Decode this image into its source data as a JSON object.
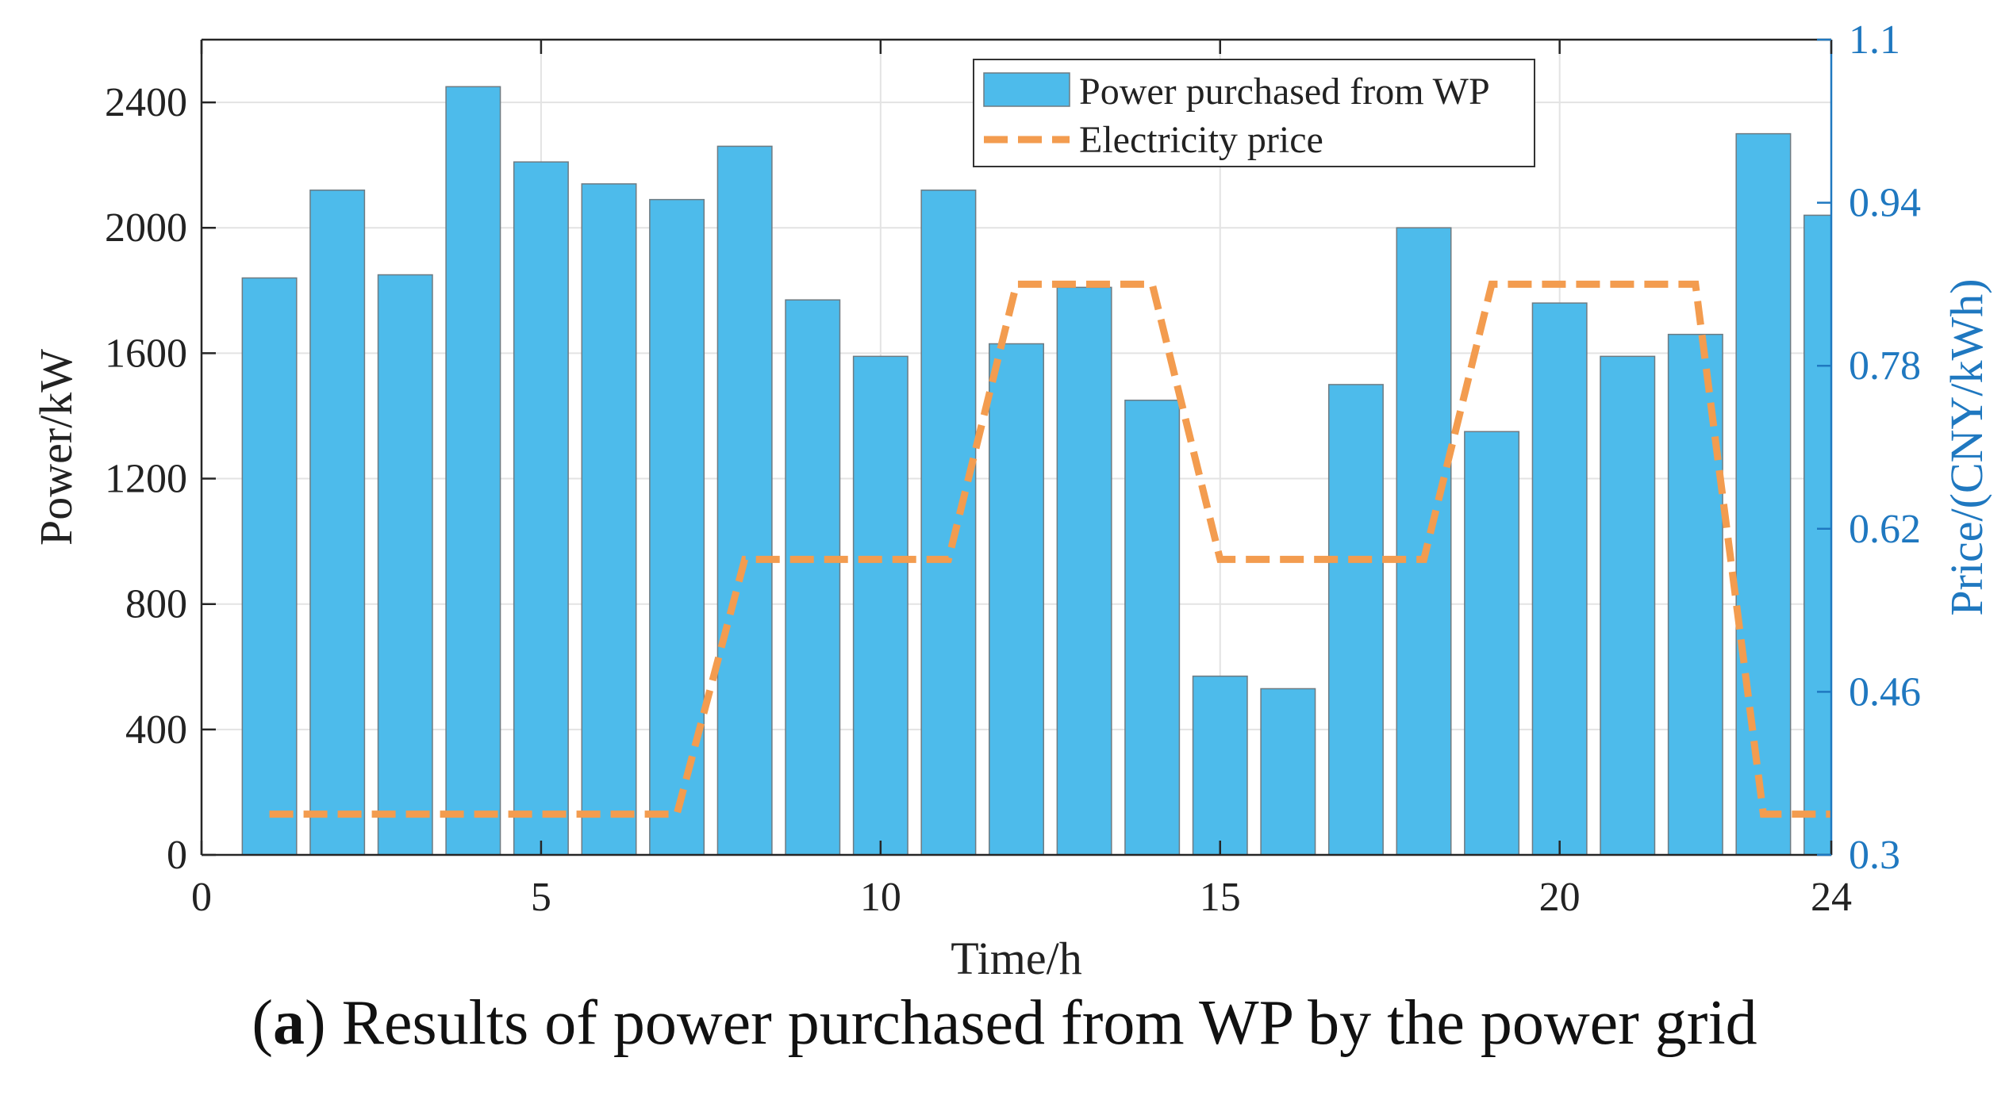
{
  "chart_data": {
    "type": "bar",
    "title": "",
    "xlabel": "Time/h",
    "ylabel": "Power/kW",
    "ylabel_right": "Price/(CNY/kWh)",
    "xlim": [
      0,
      24
    ],
    "ylim": [
      0,
      2600
    ],
    "ylim_right": [
      0.3,
      1.1
    ],
    "x_ticks": [
      "0",
      "5",
      "10",
      "15",
      "20",
      "24"
    ],
    "y_ticks": [
      "0",
      "400",
      "800",
      "1200",
      "1600",
      "2000",
      "2400"
    ],
    "y_ticks_right": [
      "0.3",
      "0.46",
      "0.62",
      "0.78",
      "0.94",
      "1.1"
    ],
    "grid": true,
    "legend_position": "top-right",
    "colors": {
      "bar": "#4DBBEB",
      "bar_edge": "#6E7B82",
      "price": "#F39C4F",
      "right_axis": "#1F78C0",
      "grid": "#E3E3E3"
    },
    "series": [
      {
        "name": "Power purchased from WP",
        "kind": "bar",
        "axis": "left",
        "x": [
          1,
          2,
          3,
          4,
          5,
          6,
          7,
          8,
          9,
          10,
          11,
          12,
          13,
          14,
          15,
          16,
          17,
          18,
          19,
          20,
          21,
          22,
          23,
          24
        ],
        "values": [
          1840,
          2120,
          1850,
          2450,
          2210,
          2140,
          2090,
          2260,
          1770,
          1590,
          2120,
          1630,
          1810,
          1450,
          570,
          530,
          1500,
          2000,
          1350,
          1760,
          1590,
          1660,
          2300,
          2040
        ]
      },
      {
        "name": "Electricity price",
        "kind": "line",
        "style": "dashed",
        "axis": "right",
        "x": [
          1,
          7,
          8,
          11,
          12,
          14,
          15,
          18,
          19,
          22,
          23,
          24
        ],
        "values": [
          0.34,
          0.34,
          0.59,
          0.59,
          0.86,
          0.86,
          0.59,
          0.59,
          0.86,
          0.86,
          0.34,
          0.34
        ]
      }
    ]
  },
  "caption": {
    "label": "a",
    "text": "Results of power purchased from WP by the power grid"
  }
}
